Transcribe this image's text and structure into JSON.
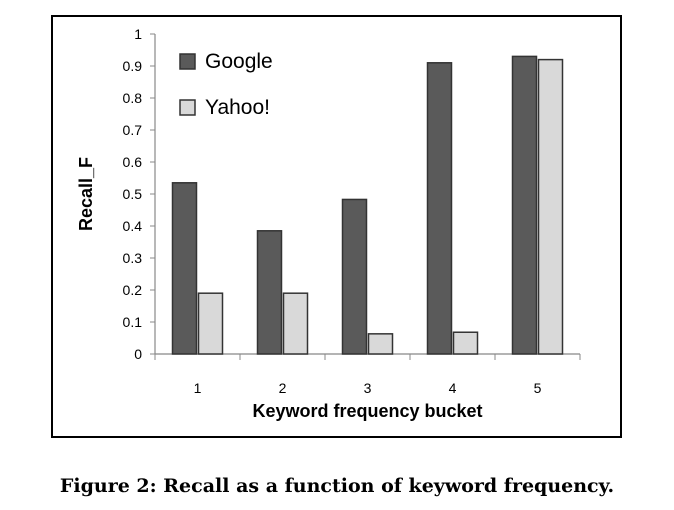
{
  "caption": "Figure 2: Recall as a function of keyword frequency.",
  "chart_data": {
    "type": "bar",
    "categories": [
      "1",
      "2",
      "3",
      "4",
      "5"
    ],
    "series": [
      {
        "name": "Google",
        "values": [
          0.535,
          0.385,
          0.483,
          0.91,
          0.93
        ],
        "color": "#5a5a5a"
      },
      {
        "name": "Yahoo!",
        "values": [
          0.19,
          0.19,
          0.063,
          0.068,
          0.92
        ],
        "color": "#d9d9d9"
      }
    ],
    "xlabel": "Keyword frequency bucket",
    "ylabel": "Recall_F",
    "ylim": [
      0,
      1
    ],
    "yticks": [
      "0",
      "0.1",
      "0.2",
      "0.3",
      "0.4",
      "0.5",
      "0.6",
      "0.7",
      "0.8",
      "0.9",
      "1"
    ],
    "grid": false,
    "legend_position": "top-left"
  }
}
